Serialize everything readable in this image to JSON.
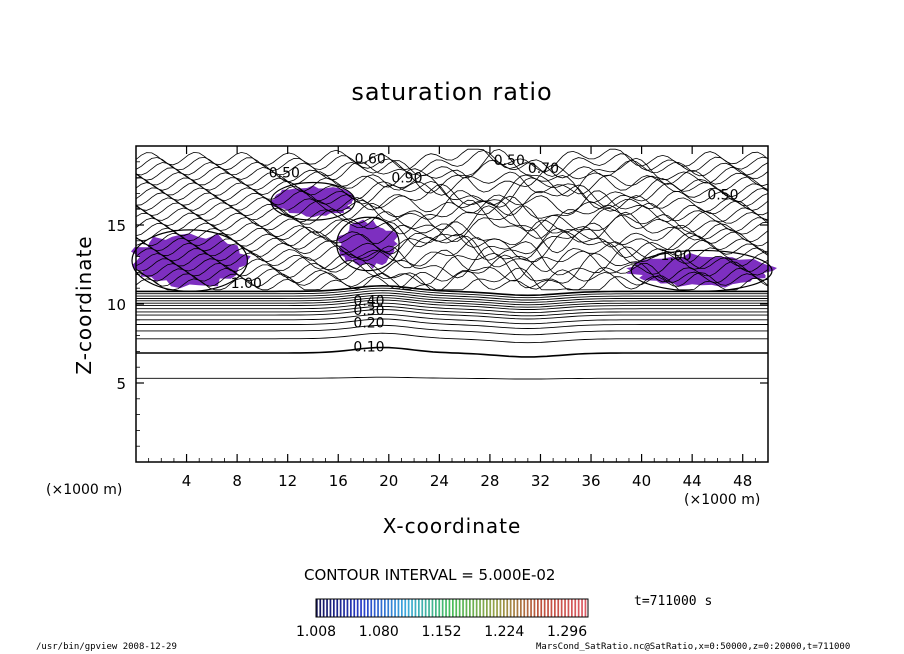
{
  "chart_data": {
    "type": "contour",
    "title": "saturation ratio",
    "xlabel": "X-coordinate",
    "ylabel": "Z-coordinate",
    "x_unit": "(×1000 m)",
    "y_unit": "(×1000 m)",
    "xlim": [
      0,
      50
    ],
    "ylim": [
      0,
      20
    ],
    "x_ticks": [
      4,
      8,
      12,
      16,
      20,
      24,
      28,
      32,
      36,
      40,
      44,
      48
    ],
    "y_ticks": [
      5,
      10,
      15
    ],
    "contour_interval_label": "CONTOUR INTERVAL = 5.000E-02",
    "contour_levels_labeled": [
      {
        "label": "0.10",
        "x": 17.2,
        "z": 7.0
      },
      {
        "label": "0.20",
        "x": 17.2,
        "z": 8.5
      },
      {
        "label": "0.30",
        "x": 17.2,
        "z": 9.3
      },
      {
        "label": "0.40",
        "x": 17.2,
        "z": 9.9
      },
      {
        "label": "0.50",
        "x": 10.5,
        "z": 18.0
      },
      {
        "label": "0.50",
        "x": 28.3,
        "z": 18.8
      },
      {
        "label": "0.50",
        "x": 45.2,
        "z": 16.6
      },
      {
        "label": "0.60",
        "x": 17.3,
        "z": 18.9
      },
      {
        "label": "0.70",
        "x": 31.0,
        "z": 18.3
      },
      {
        "label": "0.90",
        "x": 20.2,
        "z": 17.7
      },
      {
        "label": "1.00",
        "x": 7.5,
        "z": 11.0
      },
      {
        "label": "1.00",
        "x": 41.5,
        "z": 12.8
      }
    ],
    "shading": {
      "colorbar_ticks": [
        "1.008",
        "1.080",
        "1.152",
        "1.224",
        "1.296"
      ],
      "colorbar_min": 1.008,
      "colorbar_max": 1.32,
      "supersaturated_regions": [
        {
          "name": "west-band",
          "x": [
            0,
            8.5
          ],
          "z": [
            11,
            14.5
          ]
        },
        {
          "name": "upper-cloud",
          "x": [
            11,
            17
          ],
          "z": [
            15.5,
            17.5
          ]
        },
        {
          "name": "central-cloud",
          "x": [
            16.2,
            20.5
          ],
          "z": [
            12.3,
            15.3
          ]
        },
        {
          "name": "east-band",
          "x": [
            39.5,
            50
          ],
          "z": [
            11,
            13.2
          ]
        }
      ]
    },
    "time_label": "t=711000 s",
    "grid": false
  },
  "colors": {
    "shade": "#7d2fc0",
    "shade_light": "#9a5fd6"
  },
  "footer": {
    "left": "/usr/bin/gpview  2008-12-29",
    "right": "MarsCond_SatRatio.nc@SatRatio,x=0:50000,z=0:20000,t=711000"
  }
}
